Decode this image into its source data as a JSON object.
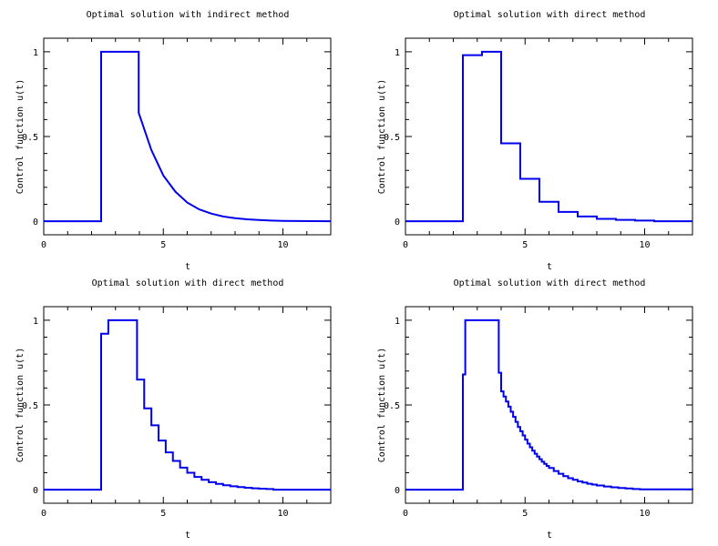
{
  "chart_data": [
    {
      "type": "line",
      "title": "Optimal solution with indirect method",
      "xlabel": "t",
      "ylabel": "Control function  u(t)",
      "xlim": [
        0,
        12
      ],
      "ylim": [
        -0.08,
        1.08
      ],
      "xticks": [
        0,
        5,
        10
      ],
      "yticks": [
        0,
        0.5,
        1
      ],
      "xtick_labels": [
        "0",
        "5",
        "10"
      ],
      "ytick_labels": [
        "0",
        "0.5",
        "1"
      ],
      "series": [
        {
          "step": false,
          "x": [
            0,
            2.4,
            2.4,
            3.97,
            3.97,
            4.5,
            5.0,
            5.5,
            6.0,
            6.5,
            7.0,
            7.5,
            8.0,
            8.5,
            9.0,
            9.5,
            10.0,
            12.0
          ],
          "y": [
            0,
            0,
            1,
            1,
            0.64,
            0.42,
            0.27,
            0.175,
            0.11,
            0.07,
            0.045,
            0.028,
            0.018,
            0.011,
            0.007,
            0.004,
            0.002,
            0
          ]
        }
      ]
    },
    {
      "type": "line",
      "title": "Optimal solution with direct method",
      "xlabel": "t",
      "ylabel": "Control function  u(t)",
      "xlim": [
        0,
        12
      ],
      "ylim": [
        -0.08,
        1.08
      ],
      "xticks": [
        0,
        5,
        10
      ],
      "yticks": [
        0,
        0.5,
        1
      ],
      "xtick_labels": [
        "0",
        "5",
        "10"
      ],
      "ytick_labels": [
        "0",
        "0.5",
        "1"
      ],
      "series": [
        {
          "step": true,
          "x": [
            0,
            2.4,
            3.2,
            4.0,
            4.8,
            5.6,
            6.4,
            7.2,
            8.0,
            8.8,
            9.6,
            10.4,
            12.0
          ],
          "y": [
            0,
            0.98,
            1.0,
            0.46,
            0.25,
            0.115,
            0.055,
            0.028,
            0.014,
            0.008,
            0.004,
            0,
            0
          ]
        }
      ]
    },
    {
      "type": "line",
      "title": "Optimal solution with direct method",
      "xlabel": "t",
      "ylabel": "Control function  u(t)",
      "xlim": [
        0,
        12
      ],
      "ylim": [
        -0.08,
        1.08
      ],
      "xticks": [
        0,
        5,
        10
      ],
      "yticks": [
        0,
        0.5,
        1
      ],
      "xtick_labels": [
        "0",
        "5",
        "10"
      ],
      "ytick_labels": [
        "0",
        "0.5",
        "1"
      ],
      "series": [
        {
          "step": true,
          "x": [
            0,
            2.4,
            2.7,
            3.9,
            4.2,
            4.5,
            4.8,
            5.1,
            5.4,
            5.7,
            6.0,
            6.3,
            6.6,
            6.9,
            7.2,
            7.5,
            7.8,
            8.1,
            8.4,
            8.7,
            9.0,
            9.3,
            9.6,
            12.0
          ],
          "y": [
            0,
            0.92,
            1.0,
            0.65,
            0.48,
            0.38,
            0.29,
            0.22,
            0.17,
            0.13,
            0.1,
            0.075,
            0.058,
            0.044,
            0.034,
            0.026,
            0.02,
            0.015,
            0.011,
            0.008,
            0.006,
            0.004,
            0,
            0
          ]
        }
      ]
    },
    {
      "type": "line",
      "title": "Optimal solution with direct method",
      "xlabel": "t",
      "ylabel": "Control function  u(t)",
      "xlim": [
        0,
        12
      ],
      "ylim": [
        -0.08,
        1.08
      ],
      "xticks": [
        0,
        5,
        10
      ],
      "yticks": [
        0,
        0.5,
        1
      ],
      "xtick_labels": [
        "0",
        "5",
        "10"
      ],
      "ytick_labels": [
        "0",
        "0.5",
        "1"
      ],
      "series": [
        {
          "step": true,
          "x": [
            0,
            2.4,
            2.5,
            3.9,
            4.0,
            4.1,
            4.2,
            4.3,
            4.4,
            4.5,
            4.6,
            4.7,
            4.8,
            4.9,
            5.0,
            5.1,
            5.2,
            5.3,
            5.4,
            5.5,
            5.6,
            5.7,
            5.8,
            5.9,
            6.0,
            6.2,
            6.4,
            6.6,
            6.8,
            7.0,
            7.2,
            7.4,
            7.6,
            7.8,
            8.0,
            8.3,
            8.6,
            8.9,
            9.2,
            9.5,
            9.8,
            12.0
          ],
          "y": [
            0,
            0.68,
            1.0,
            0.69,
            0.58,
            0.55,
            0.52,
            0.49,
            0.46,
            0.43,
            0.4,
            0.37,
            0.345,
            0.32,
            0.295,
            0.272,
            0.25,
            0.23,
            0.212,
            0.195,
            0.18,
            0.165,
            0.152,
            0.14,
            0.128,
            0.11,
            0.094,
            0.08,
            0.068,
            0.058,
            0.049,
            0.042,
            0.035,
            0.03,
            0.025,
            0.019,
            0.014,
            0.01,
            0.007,
            0.004,
            0.002,
            0
          ]
        }
      ]
    }
  ]
}
